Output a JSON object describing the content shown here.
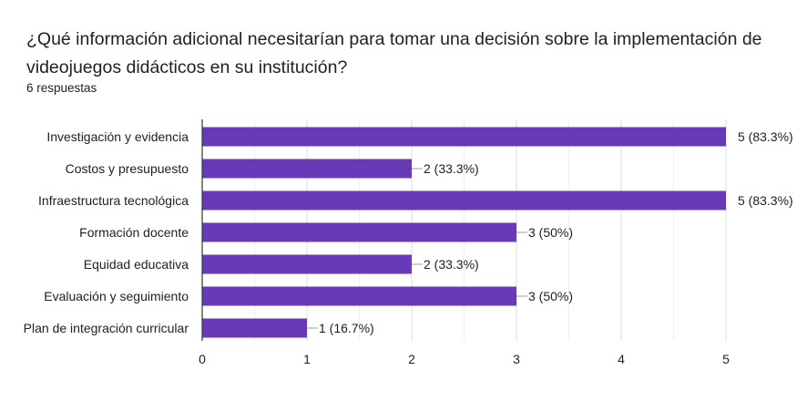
{
  "form": {
    "question": "¿Qué información adicional necesitarían para tomar una decisión sobre la implementación de videojuegos didácticos en su institución?",
    "response_count": "6 respuestas"
  },
  "colors": {
    "bar": "#673ab7",
    "grid": "#e6e6e6",
    "axis": "#333333",
    "leader": "#9e9e9e"
  },
  "chart_data": {
    "type": "bar",
    "orientation": "horizontal",
    "title": "",
    "xlabel": "",
    "ylabel": "",
    "grid": true,
    "legend": "none",
    "categories": [
      "Investigación y evidencia",
      "Costos y presupuesto",
      "Infraestructura tecnológica",
      "Formación docente",
      "Equidad educativa",
      "Evaluación y seguimiento",
      "Plan de integración curricular"
    ],
    "values": [
      5,
      2,
      5,
      3,
      2,
      3,
      1
    ],
    "data_labels": [
      "5 (83.3%)",
      "2 (33.3%)",
      "5 (83.3%)",
      "3 (50%)",
      "2 (33.3%)",
      "3 (50%)",
      "1 (16.7%)"
    ],
    "xlim": [
      0,
      5
    ],
    "xticks": [
      "0",
      "1",
      "2",
      "3",
      "4",
      "5"
    ]
  }
}
